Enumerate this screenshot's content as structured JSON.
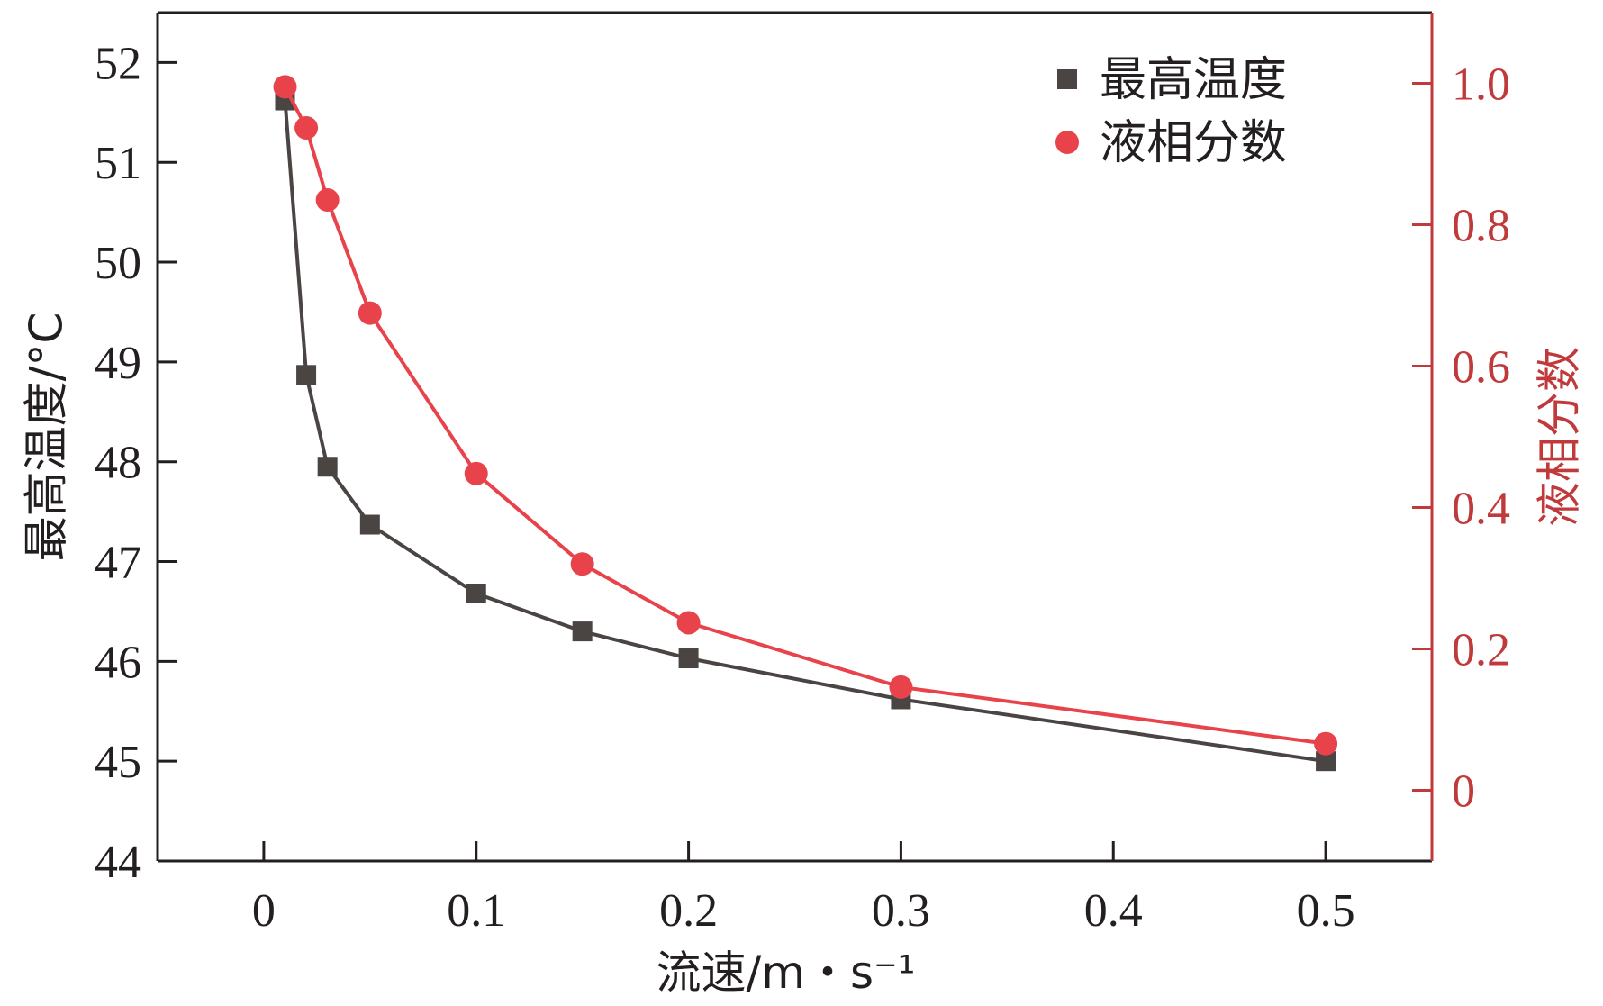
{
  "chart_data": {
    "type": "line",
    "title": "",
    "xlabel": "流速/m・s⁻¹",
    "ylabel_left": "最高温度/°C",
    "ylabel_right": "液相分数",
    "xlim": [
      -0.05,
      0.55
    ],
    "ylim_left": [
      44,
      52.5
    ],
    "ylim_right": [
      -0.1,
      1.1
    ],
    "x_ticks": [
      "0",
      "0.1",
      "0.2",
      "0.3",
      "0.4",
      "0.5"
    ],
    "x_tick_values": [
      0,
      0.1,
      0.2,
      0.3,
      0.4,
      0.5
    ],
    "y_left_ticks": [
      "44",
      "45",
      "46",
      "47",
      "48",
      "49",
      "50",
      "51",
      "52"
    ],
    "y_left_tick_values": [
      44,
      45,
      46,
      47,
      48,
      49,
      50,
      51,
      52
    ],
    "y_right_ticks": [
      "0",
      "0.2",
      "0.4",
      "0.6",
      "0.8",
      "1.0"
    ],
    "y_right_tick_values": [
      0,
      0.2,
      0.4,
      0.6,
      0.8,
      1.0
    ],
    "legend_position": "top-right",
    "grid": false,
    "series": [
      {
        "name": "最高温度",
        "axis": "left",
        "marker": "square",
        "color": "#4a4443",
        "x": [
          0.01,
          0.02,
          0.03,
          0.05,
          0.1,
          0.15,
          0.2,
          0.3,
          0.5
        ],
        "values": [
          51.62,
          48.87,
          47.95,
          47.37,
          46.68,
          46.3,
          46.03,
          45.62,
          45.0
        ]
      },
      {
        "name": "液相分数",
        "axis": "right",
        "marker": "circle",
        "color": "#e8434b",
        "x": [
          0.01,
          0.02,
          0.03,
          0.05,
          0.1,
          0.15,
          0.2,
          0.3,
          0.5
        ],
        "values": [
          0.995,
          0.937,
          0.835,
          0.675,
          0.448,
          0.32,
          0.237,
          0.146,
          0.066
        ]
      }
    ],
    "axis_colors": {
      "left": "#231f20",
      "right": "#c0393b",
      "frame": "#231f20"
    }
  }
}
